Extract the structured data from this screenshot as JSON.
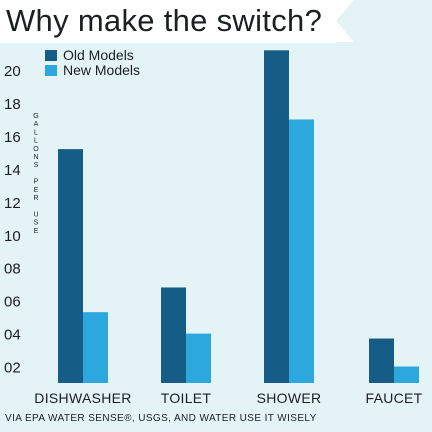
{
  "title": "Why make the switch?",
  "source": "VIA EPA WATER SENSE®, USGS, AND WATER USE IT WISELY",
  "chart_data": {
    "type": "bar",
    "title": "Why make the switch?",
    "xlabel": "",
    "ylabel": "GALLONS PER USE",
    "categories": [
      "DISHWASHER",
      "TOILET",
      "SHOWER",
      "FAUCET"
    ],
    "series": [
      {
        "name": "Old Models",
        "values": [
          15.2,
          6.8,
          21.2,
          3.7
        ],
        "color": "#155c86"
      },
      {
        "name": "New Models",
        "values": [
          5.3,
          4.0,
          17.0,
          2.0
        ],
        "color": "#2da8de"
      }
    ],
    "yticks": [
      "02",
      "04",
      "06",
      "08",
      "10",
      "12",
      "14",
      "16",
      "18",
      "20"
    ],
    "ylim": [
      1,
      21.4
    ],
    "grid": false,
    "legend": "top-left"
  }
}
